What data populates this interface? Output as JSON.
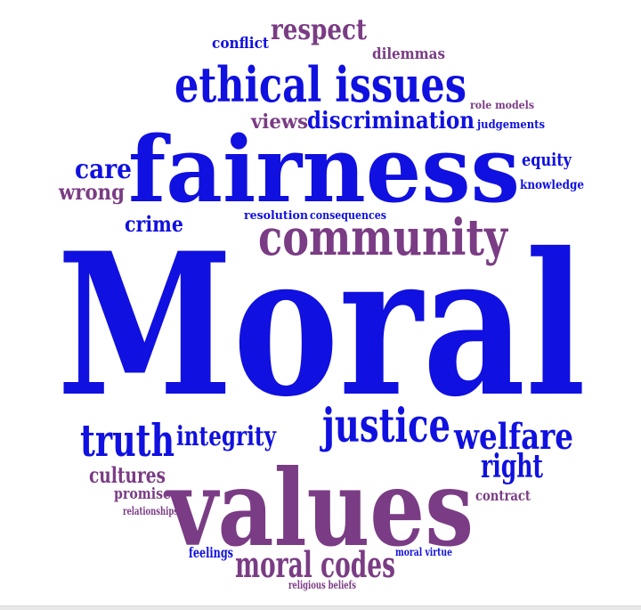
{
  "colors": {
    "blue": "#1010e0",
    "purple": "#7a3c84",
    "background": "#ffffff"
  },
  "words": [
    {
      "text": "conflict",
      "color": "blue"
    },
    {
      "text": "respect",
      "color": "purple"
    },
    {
      "text": "dilemmas",
      "color": "purple"
    },
    {
      "text": "ethical issues",
      "color": "blue"
    },
    {
      "text": "role models",
      "color": "purple"
    },
    {
      "text": "views",
      "color": "purple"
    },
    {
      "text": "discrimination",
      "color": "blue"
    },
    {
      "text": "judgements",
      "color": "blue"
    },
    {
      "text": "fairness",
      "color": "blue"
    },
    {
      "text": "care",
      "color": "blue"
    },
    {
      "text": "equity",
      "color": "blue"
    },
    {
      "text": "wrong",
      "color": "purple"
    },
    {
      "text": "knowledge",
      "color": "blue"
    },
    {
      "text": "crime",
      "color": "blue"
    },
    {
      "text": "resolution",
      "color": "blue"
    },
    {
      "text": "consequences",
      "color": "blue"
    },
    {
      "text": "community",
      "color": "purple"
    },
    {
      "text": "Moral",
      "color": "blue"
    },
    {
      "text": "truth",
      "color": "blue"
    },
    {
      "text": "integrity",
      "color": "blue"
    },
    {
      "text": "justice",
      "color": "blue"
    },
    {
      "text": "welfare",
      "color": "blue"
    },
    {
      "text": "cultures",
      "color": "purple"
    },
    {
      "text": "right",
      "color": "blue"
    },
    {
      "text": "promises",
      "color": "purple"
    },
    {
      "text": "values",
      "color": "purple"
    },
    {
      "text": "contract",
      "color": "purple"
    },
    {
      "text": "relationships",
      "color": "purple"
    },
    {
      "text": "feelings",
      "color": "blue"
    },
    {
      "text": "moral virtue",
      "color": "blue"
    },
    {
      "text": "moral codes",
      "color": "purple"
    },
    {
      "text": "religious beliefs",
      "color": "purple"
    }
  ]
}
